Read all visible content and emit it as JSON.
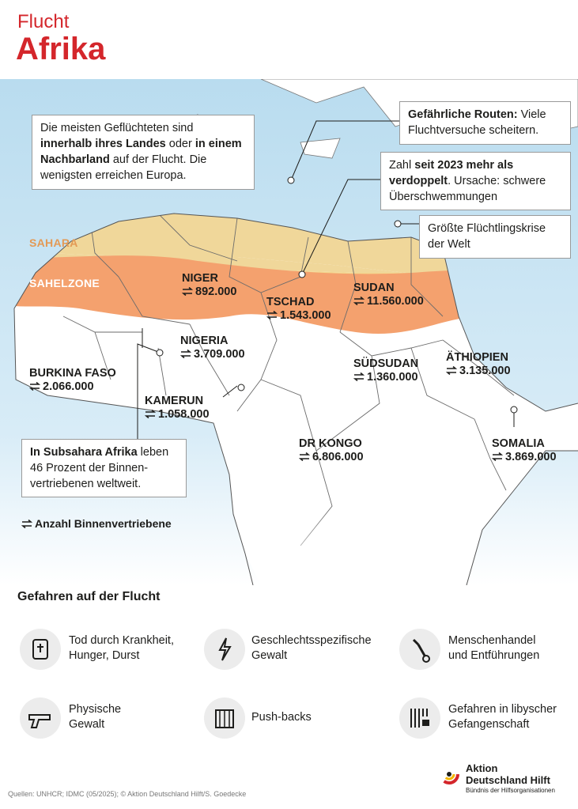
{
  "header": {
    "kicker": "Flucht",
    "title": "Afrika"
  },
  "map": {
    "regions": [
      "SAHARA",
      "SAHELZONE"
    ],
    "countries": [
      {
        "name": "NIGER",
        "displaced": "892.000"
      },
      {
        "name": "TSCHAD",
        "displaced": "1.543.000"
      },
      {
        "name": "SUDAN",
        "displaced": "11.560.000"
      },
      {
        "name": "NIGERIA",
        "displaced": "3.709.000"
      },
      {
        "name": "BURKINA FASO",
        "displaced": "2.066.000"
      },
      {
        "name": "SÜDSUDAN",
        "displaced": "1.360.000"
      },
      {
        "name": "ÄTHIOPIEN",
        "displaced": "3.135.000"
      },
      {
        "name": "KAMERUN",
        "displaced": "1.058.000"
      },
      {
        "name": "DR KONGO",
        "displaced": "6.806.000"
      },
      {
        "name": "SOMALIA",
        "displaced": "3.869.000"
      }
    ],
    "callouts": [
      {
        "parts": [
          {
            "text": "Die meisten Geflüchteten sind ",
            "bold": false
          },
          {
            "text": "innerhalb ihres Landes",
            "bold": true
          },
          {
            "text": " oder ",
            "bold": false
          },
          {
            "text": "in einem Nachbarland",
            "bold": true
          },
          {
            "text": " auf der Flucht. Die wenigsten erreichen Europa.",
            "bold": false
          }
        ]
      },
      {
        "parts": [
          {
            "text": "Gefährliche Routen:",
            "bold": true
          },
          {
            "text": " Viele Fluchtversuche scheitern.",
            "bold": false
          }
        ]
      },
      {
        "parts": [
          {
            "text": "Zahl ",
            "bold": false
          },
          {
            "text": "seit 2023 mehr als verdoppelt",
            "bold": true
          },
          {
            "text": ". Ursache: schwere Überschwemmungen",
            "bold": false
          }
        ]
      },
      {
        "parts": [
          {
            "text": "Größte Flüchtlingskrise der Welt",
            "bold": false
          }
        ]
      },
      {
        "parts": [
          {
            "text": "In Subsahara Afrika",
            "bold": true
          },
          {
            "text": " leben 46 Prozent der Binnen-vertriebenen weltweit.",
            "bold": false
          }
        ]
      }
    ],
    "legend": "Anzahl Binnenvertriebene"
  },
  "dangers": {
    "title": "Gefahren auf der Flucht",
    "items": [
      {
        "lines": [
          "Tod durch Krankheit,",
          "Hunger, Durst"
        ]
      },
      {
        "lines": [
          "Geschlechtsspezifische",
          "Gewalt"
        ]
      },
      {
        "lines": [
          "Menschenhandel",
          "und Entführungen"
        ]
      },
      {
        "lines": [
          "Physische",
          "Gewalt"
        ]
      },
      {
        "lines": [
          "Push-backs"
        ]
      },
      {
        "lines": [
          "Gefahren in libyscher",
          "Gefangenschaft"
        ]
      }
    ]
  },
  "footer": {
    "sources": "Quellen: UNHCR; IDMC (05/2025); © Aktion Deutschland Hilft/S. Goedecke",
    "logo": {
      "lines": [
        "Aktion",
        "Deutschland Hilft"
      ],
      "tagline": "Bündnis der Hilfsorganisationen"
    }
  }
}
